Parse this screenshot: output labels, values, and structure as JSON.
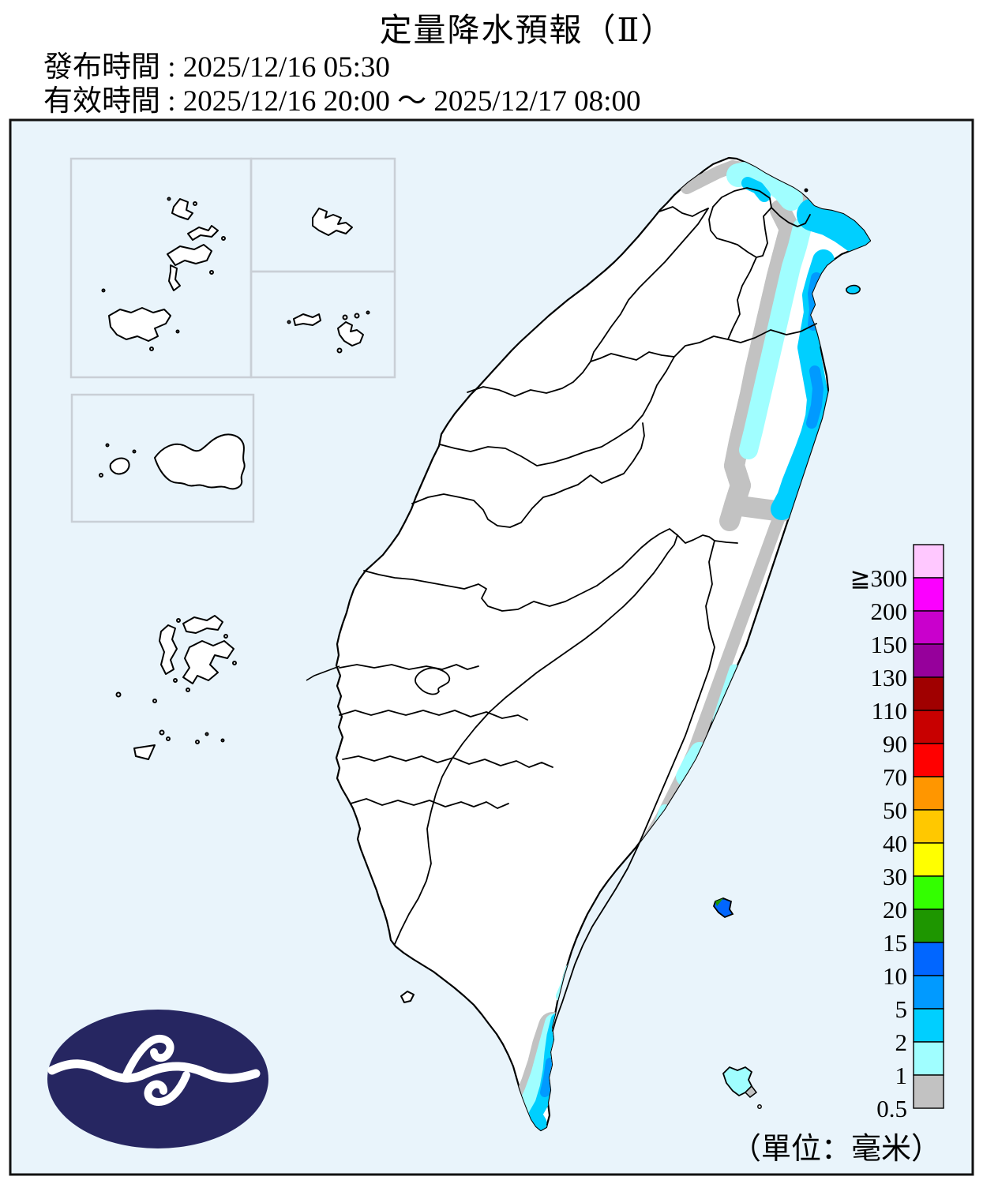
{
  "header": {
    "title": "定量降水預報（Ⅱ）",
    "issue_time": "發布時間 : 2025/12/16 05:30",
    "valid_time": "有效時間 : 2025/12/16 20:00 ～ 2025/12/17 08:00"
  },
  "map": {
    "unit_label": "（單位：毫米）"
  },
  "legend": {
    "bands": [
      {
        "label": "≧300",
        "color": "#FFC8FF"
      },
      {
        "label": "200",
        "color": "#FB00FF"
      },
      {
        "label": "150",
        "color": "#C900CC"
      },
      {
        "label": "130",
        "color": "#96009B"
      },
      {
        "label": "110",
        "color": "#A00000"
      },
      {
        "label": "90",
        "color": "#C80000"
      },
      {
        "label": "70",
        "color": "#FF0000"
      },
      {
        "label": "50",
        "color": "#FF9600"
      },
      {
        "label": "40",
        "color": "#FFC800"
      },
      {
        "label": "30",
        "color": "#FFFF00"
      },
      {
        "label": "20",
        "color": "#33FF00"
      },
      {
        "label": "15",
        "color": "#1E9600"
      },
      {
        "label": "10",
        "color": "#0166FF"
      },
      {
        "label": "5",
        "color": "#019AFF"
      },
      {
        "label": "2",
        "color": "#00CFFF"
      },
      {
        "label": "1",
        "color": "#A0FEFF"
      },
      {
        "label": "0.5",
        "color": "#C2C2C2"
      }
    ]
  },
  "palette": {
    "sea": "#E9F4FB",
    "land": "#FFFFFF",
    "gray": "#C2C2C2",
    "pale_cyan": "#A0FEFF",
    "cyan": "#00CFFF",
    "blue": "#019AFF",
    "deep_blue": "#0166FF",
    "green": "#1E9600",
    "inset": "#C9CFD6",
    "logo_navy": "#262661"
  }
}
